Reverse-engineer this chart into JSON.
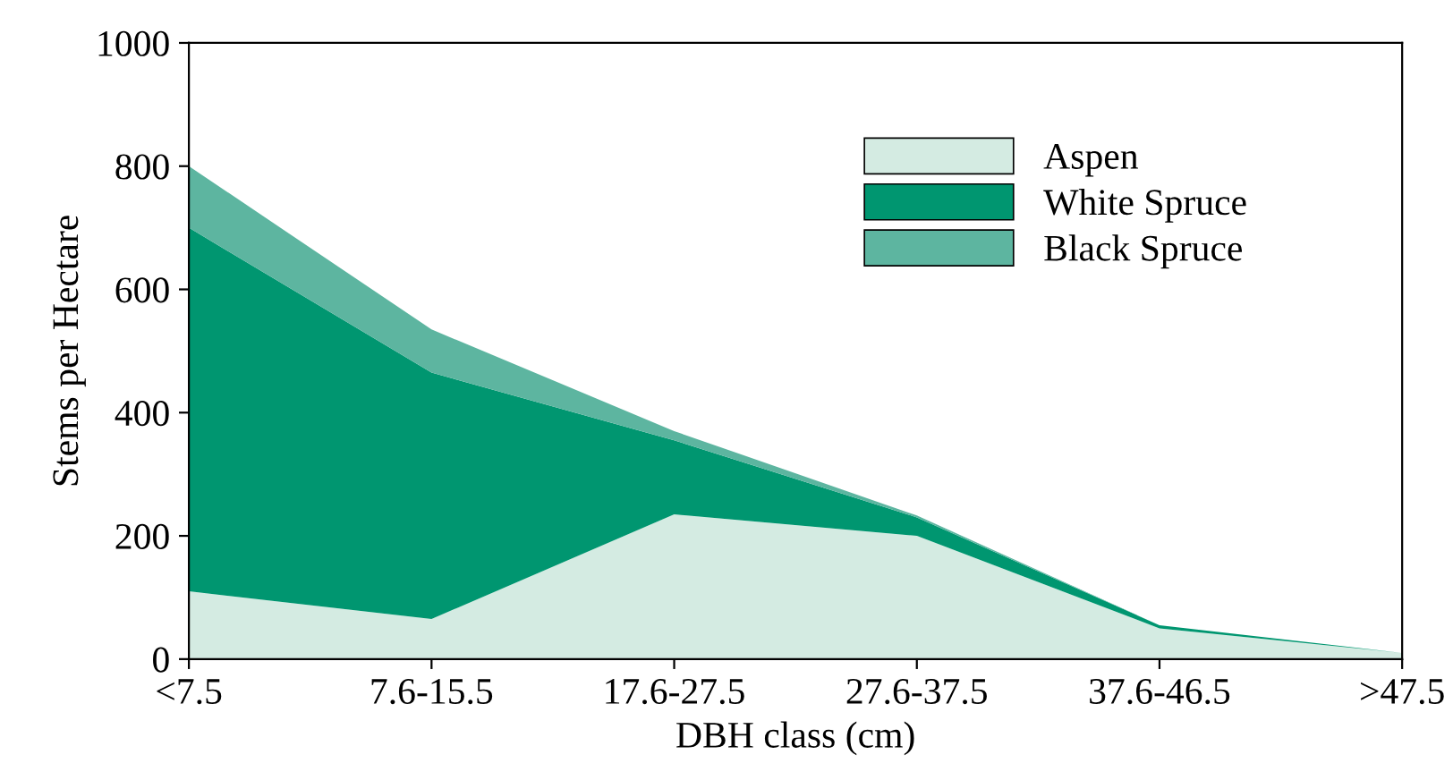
{
  "chart_data": {
    "type": "area",
    "stacked": true,
    "xlabel": "DBH class (cm)",
    "ylabel": "Stems per Hectare",
    "categories": [
      "<7.5",
      "7.6-15.5",
      "17.6-27.5",
      "27.6-37.5",
      "37.6-46.5",
      ">47.5"
    ],
    "series": [
      {
        "name": "Aspen",
        "color": "#d4ebe2",
        "values": [
          110,
          65,
          235,
          200,
          50,
          10
        ]
      },
      {
        "name": "White Spruce",
        "color": "#009670",
        "values": [
          590,
          400,
          120,
          30,
          5,
          0
        ]
      },
      {
        "name": "Black Spruce",
        "color": "#5db5a0",
        "values": [
          100,
          70,
          15,
          3,
          0,
          0
        ]
      }
    ],
    "ylim": [
      0,
      1000
    ],
    "yticks": [
      0,
      200,
      400,
      600,
      800,
      1000
    ],
    "grid": false,
    "legend": "top right"
  }
}
